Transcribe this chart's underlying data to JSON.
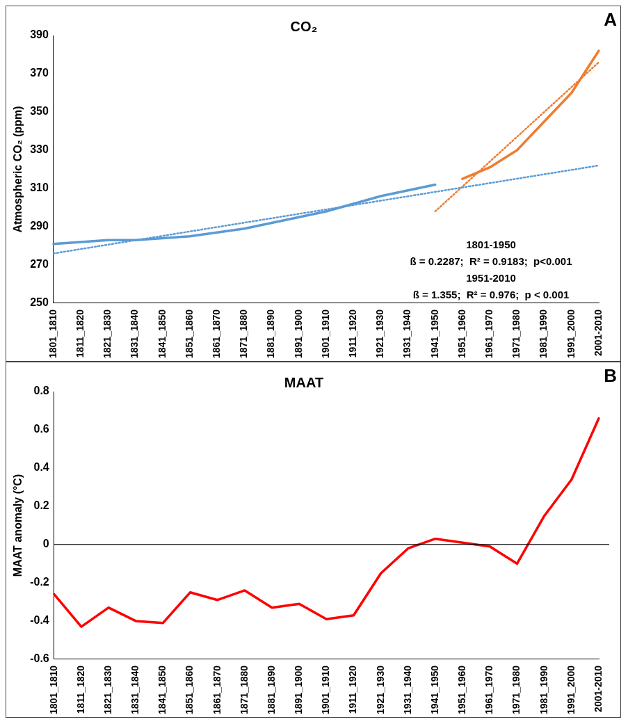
{
  "chart_data": [
    {
      "type": "line",
      "title": "CO₂",
      "ylabel": "Atmospheric CO₂ (ppm)",
      "categories": [
        "1801_1810",
        "1811_1820",
        "1821_1830",
        "1831_1840",
        "1841_1850",
        "1851_1860",
        "1861_1870",
        "1871_1880",
        "1881_1890",
        "1891_1900",
        "1901_1910",
        "1911_1920",
        "1921_1930",
        "1931_1940",
        "1941_1950",
        "1951_1960",
        "1961_1970",
        "1971_1980",
        "1981_1990",
        "1991_2000",
        "2001-2010"
      ],
      "series": [
        {
          "color": "#5b9bd5",
          "values": [
            281,
            282,
            283,
            283,
            284,
            285,
            287,
            289,
            292,
            295,
            298,
            302,
            306,
            309,
            312,
            null,
            null,
            null,
            null,
            null,
            null
          ]
        },
        {
          "color": "#ed7d31",
          "values": [
            null,
            null,
            null,
            null,
            null,
            null,
            null,
            null,
            null,
            null,
            null,
            null,
            null,
            null,
            null,
            315,
            321,
            330,
            345,
            360,
            382
          ]
        },
        {
          "color": "#5b9bd5",
          "line_style": "dotted",
          "values": [
            276,
            null,
            null,
            null,
            null,
            null,
            null,
            null,
            null,
            null,
            null,
            null,
            null,
            null,
            null,
            null,
            null,
            null,
            null,
            null,
            322
          ]
        },
        {
          "color": "#ed7d31",
          "line_style": "dotted",
          "values": [
            null,
            null,
            null,
            null,
            null,
            null,
            null,
            null,
            null,
            null,
            null,
            null,
            null,
            null,
            298,
            null,
            null,
            null,
            null,
            null,
            376
          ]
        }
      ],
      "ylim": [
        250,
        390
      ],
      "yticks": [
        250,
        270,
        290,
        310,
        330,
        350,
        370,
        390
      ],
      "grid": false,
      "legend": false,
      "marker": "none",
      "line_style": "solid",
      "annotations": [
        "A",
        "1801-1950",
        "ß = 0.2287;  R² = 0.9183;  p<0.001",
        "1951-2010",
        "ß = 1.355;  R² = 0.976;  p < 0.001"
      ]
    },
    {
      "type": "line",
      "title": "MAAT",
      "ylabel": "MAAT anomaly (°C)",
      "categories": [
        "1801_1810",
        "1811_1820",
        "1821_1830",
        "1831_1840",
        "1841_1850",
        "1851_1860",
        "1861_1870",
        "1871_1880",
        "1881_1890",
        "1891_1900",
        "1901_1910",
        "1911_1920",
        "1921_1930",
        "1931_1940",
        "1941_1950",
        "1951_1960",
        "1961_1970",
        "1971_1980",
        "1981_1990",
        "1991_2000",
        "2001-2010"
      ],
      "series": [
        {
          "color": "#ff0000",
          "values": [
            -0.26,
            -0.43,
            -0.33,
            -0.4,
            -0.41,
            -0.25,
            -0.29,
            -0.24,
            -0.33,
            -0.31,
            -0.39,
            -0.37,
            -0.15,
            -0.02,
            0.03,
            0.01,
            -0.01,
            -0.1,
            0.15,
            0.34,
            0.66
          ]
        }
      ],
      "ylim": [
        -0.6,
        0.8
      ],
      "yticks": [
        -0.6,
        -0.4,
        -0.2,
        0,
        0.2,
        0.4,
        0.6,
        0.8
      ],
      "grid": false,
      "legend": false,
      "marker": "none",
      "line_style": "solid",
      "ref_lines": [
        {
          "axis": "y",
          "value": 0,
          "color": "#000000"
        }
      ],
      "annotations": [
        "B"
      ]
    }
  ]
}
